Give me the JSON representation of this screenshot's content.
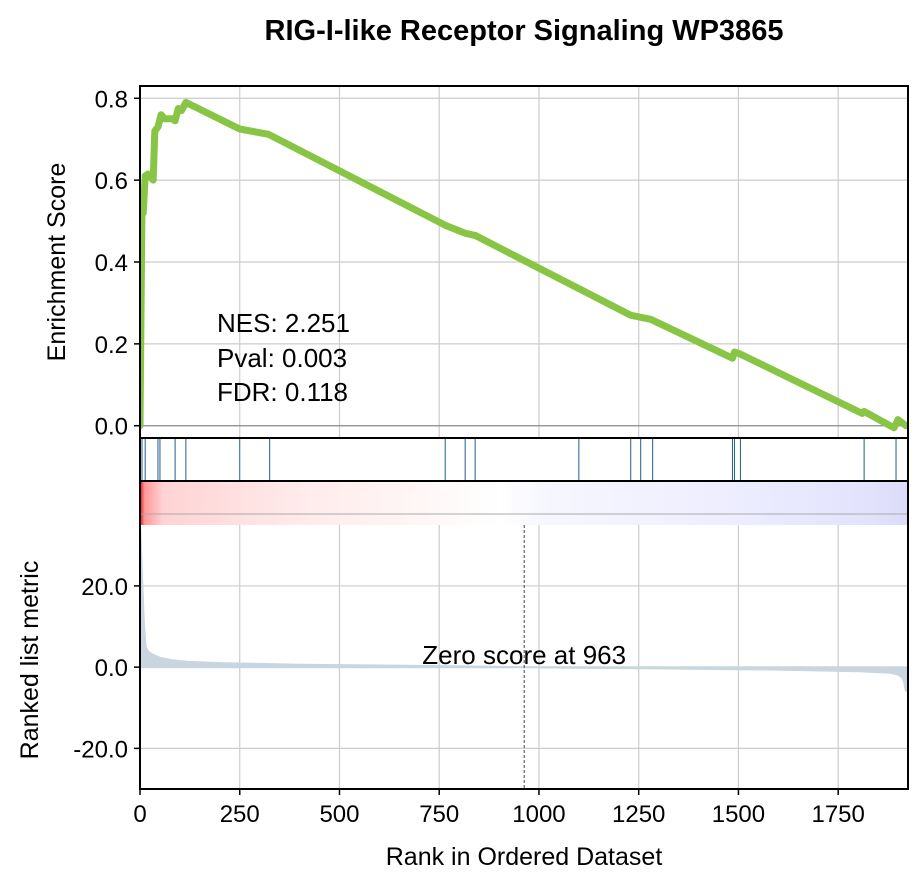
{
  "chart_data": {
    "type": "line",
    "title": "RIG-I-like Receptor Signaling WP3865",
    "colors": {
      "es_line": "#88c544",
      "hit_lines": "#1f5f8b",
      "metric_fill": "#c9d5df",
      "heat_pos": "#ff0000",
      "heat_neg": "#0000ff"
    },
    "enrichment_panel": {
      "ylabel": "Enrichment Score",
      "ylim": [
        -0.03,
        0.83
      ],
      "yticks": [
        0.0,
        0.2,
        0.4,
        0.6,
        0.8
      ],
      "ytick_labels": [
        "0.0",
        "0.2",
        "0.4",
        "0.6",
        "0.8"
      ],
      "grid": true,
      "stats": [
        "NES: 2.251",
        "Pval: 0.003",
        "FDR: 0.118"
      ],
      "series": [
        {
          "x": [
            0,
            5,
            8,
            13,
            20,
            33,
            37,
            45,
            53,
            62,
            80,
            88,
            96,
            104,
            115,
            250,
            322,
            765,
            815,
            840,
            1100,
            1230,
            1255,
            1280,
            1485,
            1490,
            1505,
            1810,
            1815,
            1890,
            1900,
            1920
          ],
          "y": [
            0.0,
            0.54,
            0.52,
            0.61,
            0.615,
            0.6,
            0.72,
            0.73,
            0.76,
            0.75,
            0.75,
            0.745,
            0.775,
            0.77,
            0.79,
            0.725,
            0.712,
            0.49,
            0.47,
            0.465,
            0.335,
            0.27,
            0.265,
            0.26,
            0.165,
            0.18,
            0.175,
            0.03,
            0.035,
            -0.005,
            0.015,
            0.0
          ]
        }
      ]
    },
    "hits": [
      5,
      13,
      45,
      50,
      88,
      115,
      250,
      325,
      765,
      815,
      840,
      1100,
      1230,
      1255,
      1285,
      1485,
      1490,
      1505,
      1815,
      1895
    ],
    "metric_panel": {
      "ylabel": "Ranked list metric",
      "ylim": [
        -30,
        35
      ],
      "yticks": [
        20.0,
        0.0,
        -20.0
      ],
      "ytick_labels": [
        "20.0",
        "0.0",
        "-20.0"
      ],
      "zero_score_label": "Zero score at 963",
      "zero_score_rank": 963,
      "profile_x": [
        0,
        3,
        6,
        10,
        14,
        20,
        30,
        50,
        80,
        120,
        200,
        400,
        700,
        963,
        1300,
        1600,
        1800,
        1880,
        1900,
        1910,
        1915,
        1920
      ],
      "profile_y": [
        35,
        28,
        20,
        10,
        5,
        3.8,
        3.2,
        2.3,
        1.7,
        1.3,
        1.0,
        0.6,
        0.3,
        0.0,
        -0.3,
        -0.6,
        -1.0,
        -1.4,
        -1.8,
        -2.5,
        -3.5,
        -6.0
      ]
    },
    "xaxis": {
      "xlabel": "Rank in Ordered Dataset",
      "xlim": [
        0,
        1925
      ],
      "xticks": [
        0,
        250,
        500,
        750,
        1000,
        1250,
        1500,
        1750
      ],
      "xtick_labels": [
        "0",
        "250",
        "500",
        "750",
        "1000",
        "1250",
        "1500",
        "1750"
      ]
    }
  }
}
